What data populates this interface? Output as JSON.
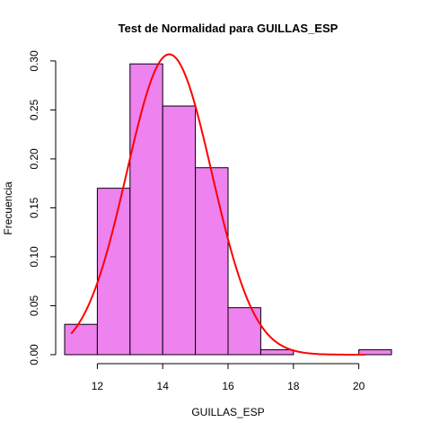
{
  "chart_data": {
    "type": "bar",
    "title": "Test de Normalidad para  GUILLAS_ESP",
    "xlabel": "GUILLAS_ESP",
    "ylabel": "Frecuencia",
    "xlim": [
      11,
      21
    ],
    "ylim": [
      0,
      0.31
    ],
    "x_ticks": [
      12,
      14,
      16,
      18,
      20
    ],
    "y_ticks": [
      0.0,
      0.05,
      0.1,
      0.15,
      0.2,
      0.25,
      0.3
    ],
    "y_tick_labels": [
      "0.00",
      "0.05",
      "0.10",
      "0.15",
      "0.20",
      "0.25",
      "0.30"
    ],
    "bin_edges": [
      11,
      12,
      13,
      14,
      15,
      16,
      17,
      18,
      19,
      20,
      21
    ],
    "values": [
      0.031,
      0.17,
      0.297,
      0.254,
      0.191,
      0.048,
      0.005,
      0,
      0,
      0.005
    ],
    "normal_curve": {
      "mean": 14.2,
      "sd": 1.3,
      "x_range": [
        11.2,
        20.2
      ]
    },
    "grid": false,
    "colors": {
      "bar_fill": "#ee82ee",
      "bar_stroke": "#000000",
      "curve": "#ff0000",
      "axis": "#000000",
      "text": "#000000"
    }
  }
}
